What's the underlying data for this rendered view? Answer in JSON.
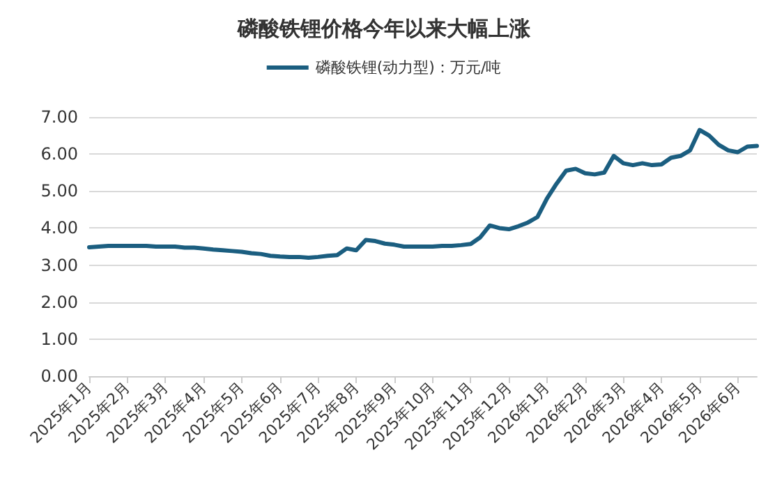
{
  "chart_data": {
    "type": "line",
    "title": "磷酸铁锂价格今年以来大幅上涨",
    "categories": [
      "2025年1月",
      null,
      null,
      null,
      "2025年2月",
      null,
      null,
      null,
      "2025年3月",
      null,
      null,
      null,
      "2025年4月",
      null,
      null,
      null,
      "2025年5月",
      null,
      null,
      null,
      "2025年6月",
      null,
      null,
      null,
      "2025年7月",
      null,
      null,
      null,
      "2025年8月",
      null,
      null,
      null,
      "2025年9月",
      null,
      null,
      null,
      "2025年10月",
      null,
      null,
      null,
      "2025年11月",
      null,
      null,
      null,
      "2025年12月",
      null,
      null,
      null,
      "2026年1月",
      null,
      null,
      null,
      "2026年2月",
      null,
      null,
      null,
      "2026年3月",
      null,
      null,
      null,
      "2026年4月",
      null,
      null,
      null,
      "2026年5月",
      null,
      null,
      null,
      "2026年6月",
      null,
      null
    ],
    "series": [
      {
        "name": "磷酸铁锂(动力型)：万元/吨",
        "color": "#1b5e80",
        "values": [
          3.48,
          3.5,
          3.52,
          3.52,
          3.52,
          3.52,
          3.52,
          3.5,
          3.5,
          3.5,
          3.47,
          3.47,
          3.45,
          3.42,
          3.4,
          3.38,
          3.36,
          3.32,
          3.3,
          3.25,
          3.23,
          3.22,
          3.22,
          3.2,
          3.22,
          3.25,
          3.27,
          3.45,
          3.4,
          3.68,
          3.65,
          3.58,
          3.55,
          3.5,
          3.5,
          3.5,
          3.5,
          3.52,
          3.52,
          3.54,
          3.57,
          3.75,
          4.07,
          4.0,
          3.97,
          4.05,
          4.15,
          4.3,
          4.8,
          5.2,
          5.55,
          5.6,
          5.48,
          5.45,
          5.5,
          5.95,
          5.75,
          5.7,
          5.75,
          5.7,
          5.72,
          5.9,
          5.95,
          6.1,
          6.65,
          6.5,
          6.25,
          6.1,
          6.05,
          6.2,
          6.22
        ]
      }
    ],
    "ylim": [
      0,
      7
    ],
    "yticks": [
      {
        "value": 0,
        "label": "0.00"
      },
      {
        "value": 1,
        "label": "1.00"
      },
      {
        "value": 2,
        "label": "2.00"
      },
      {
        "value": 3,
        "label": "3.00"
      },
      {
        "value": 4,
        "label": "4.00"
      },
      {
        "value": 5,
        "label": "5.00"
      },
      {
        "value": 6,
        "label": "6.00"
      },
      {
        "value": 7,
        "label": "7.00"
      }
    ],
    "grid": "y",
    "legend": "top",
    "marker": "none",
    "line_style": "solid"
  }
}
